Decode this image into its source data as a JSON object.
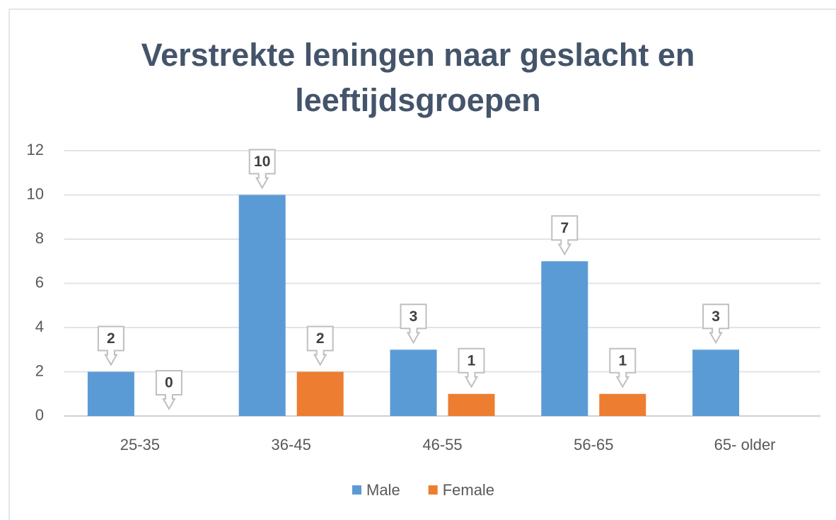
{
  "chart_data": {
    "type": "bar",
    "title": "Verstrekte leningen naar geslacht en leeftijdsgroepen",
    "categories": [
      "25-35",
      "36-45",
      "46-55",
      "56-65",
      "65- older"
    ],
    "series": [
      {
        "name": "Male",
        "color": "#5b9bd5",
        "values": [
          2,
          10,
          3,
          7,
          3
        ]
      },
      {
        "name": "Female",
        "color": "#ed7d31",
        "values": [
          0,
          2,
          1,
          1,
          null
        ]
      }
    ],
    "ylim": [
      0,
      12
    ],
    "yticks": [
      0,
      2,
      4,
      6,
      8,
      10,
      12
    ],
    "grid": true,
    "legend": "bottom",
    "data_labels": true
  }
}
